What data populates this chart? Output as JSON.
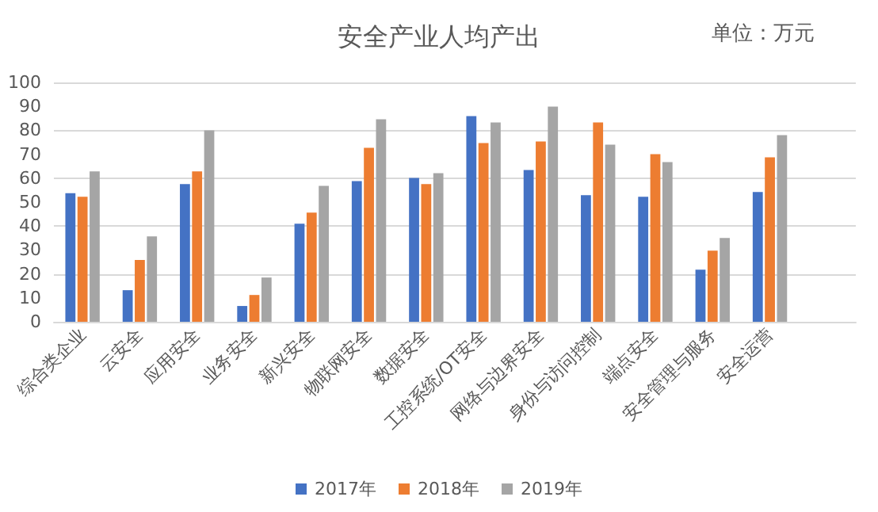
{
  "chart_data": {
    "type": "bar",
    "title": "安全产业人均产出",
    "annotations": [
      "单位：万元"
    ],
    "categories": [
      "综合类企业",
      "云安全",
      "应用安全",
      "业务安全",
      "新兴安全",
      "物联网安全",
      "数据安全",
      "工控系统/OT安全",
      "网络与边界安全",
      "身份与访问控制",
      "端点安全",
      "安全管理与服务",
      "安全运营",
      null
    ],
    "series": [
      {
        "name": "2017年",
        "color": "#4472c4",
        "values": [
          53.7,
          13.2,
          57.5,
          6.6,
          41,
          58.8,
          60.1,
          85.9,
          63.4,
          52.9,
          52.2,
          21.8,
          54.2,
          null
        ]
      },
      {
        "name": "2018年",
        "color": "#ed7d31",
        "values": [
          52.2,
          25.8,
          62.8,
          11.2,
          45.6,
          72.7,
          57.5,
          74.7,
          75.3,
          83.3,
          70,
          29.7,
          68.7,
          null
        ]
      },
      {
        "name": "2019年",
        "color": "#a5a5a5",
        "values": [
          62.8,
          35.7,
          80,
          18.5,
          56.8,
          84.6,
          62.1,
          83.3,
          89.9,
          74,
          66.7,
          35,
          78,
          null
        ]
      }
    ],
    "ylim": [
      0,
      100
    ],
    "yticks": [
      0,
      10,
      20,
      30,
      40,
      50,
      60,
      70,
      80,
      90,
      100
    ],
    "grid": "y",
    "legend": "bottom"
  }
}
